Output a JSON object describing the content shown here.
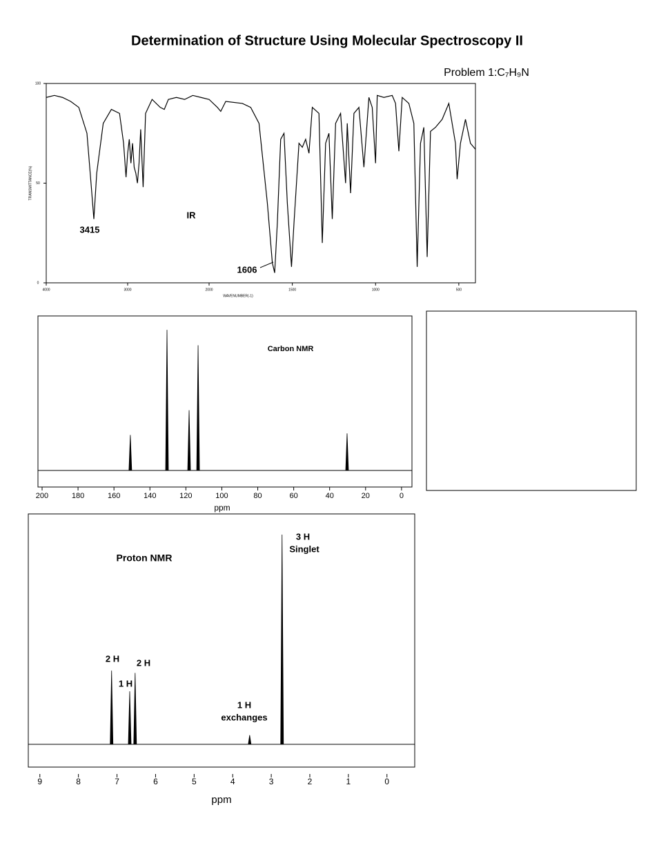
{
  "header": {
    "title": "Determination of Structure Using Molecular Spectroscopy II",
    "problem": "Problem 1:C₇H₉N"
  },
  "chart_data": [
    {
      "type": "line",
      "title": "IR",
      "xlabel": "WAVENUMBER(-1)",
      "ylabel": "TRANSMITTANCE(%)",
      "annotations": [
        "3415",
        "1606"
      ],
      "x": [
        4000,
        3900,
        3800,
        3700,
        3600,
        3500,
        3450,
        3415,
        3380,
        3300,
        3200,
        3100,
        3050,
        3020,
        3000,
        2980,
        2960,
        2940,
        2920,
        2900,
        2880,
        2860,
        2840,
        2810,
        2780,
        2700,
        2600,
        2550,
        2500,
        2400,
        2300,
        2200,
        2100,
        2000,
        1950,
        1930,
        1900,
        1800,
        1750,
        1700,
        1650,
        1620,
        1606,
        1590,
        1570,
        1550,
        1530,
        1505,
        1490,
        1475,
        1460,
        1440,
        1420,
        1400,
        1380,
        1340,
        1320,
        1300,
        1280,
        1260,
        1240,
        1210,
        1180,
        1170,
        1150,
        1130,
        1100,
        1070,
        1040,
        1020,
        1000,
        990,
        950,
        900,
        880,
        860,
        840,
        800,
        770,
        750,
        730,
        710,
        690,
        670,
        640,
        600,
        560,
        520,
        510,
        490,
        460,
        430,
        400
      ],
      "series": [
        {
          "name": "IR",
          "color": "#000000",
          "values": [
            93,
            94,
            93,
            91,
            88,
            75,
            50,
            32,
            55,
            80,
            87,
            85,
            70,
            53,
            65,
            72,
            60,
            70,
            58,
            55,
            50,
            60,
            77,
            48,
            85,
            92,
            88,
            87,
            92,
            93,
            92,
            94,
            93,
            92,
            88,
            86,
            91,
            90,
            88,
            80,
            40,
            10,
            5,
            30,
            72,
            75,
            40,
            8,
            30,
            50,
            70,
            68,
            72,
            65,
            88,
            85,
            20,
            70,
            75,
            32,
            80,
            85,
            50,
            80,
            45,
            85,
            88,
            58,
            93,
            88,
            60,
            94,
            93,
            94,
            90,
            66,
            93,
            90,
            80,
            8,
            70,
            78,
            13,
            76,
            78,
            82,
            90,
            70,
            52,
            70,
            82,
            70,
            67
          ]
        }
      ],
      "xlim": [
        4000,
        400
      ],
      "xticks": [
        4000,
        3000,
        2000,
        1500,
        1000,
        500
      ],
      "ylim": [
        0,
        100
      ],
      "yticks": [
        0,
        50,
        100
      ]
    },
    {
      "type": "spectrum",
      "title": "Carbon NMR",
      "xlabel": "ppm",
      "x": [
        150.9,
        130.5,
        118.2,
        113.2,
        30.3
      ],
      "values": [
        23,
        91,
        39,
        81,
        24
      ],
      "color": "#000000",
      "xlim": [
        202.3,
        -5.8
      ],
      "xticks": [
        200,
        180,
        160,
        140,
        120,
        100,
        80,
        60,
        40,
        20,
        0
      ],
      "ylim": [
        0,
        100
      ]
    },
    {
      "type": "spectrum",
      "title": "Proton NMR",
      "xlabel": "ppm",
      "peak_labels": [
        "2 H",
        "1 H",
        "2 H",
        "1 H",
        "exchanges",
        "3 H",
        "Singlet"
      ],
      "x": [
        7.14,
        6.67,
        6.53,
        3.56,
        2.72
      ],
      "values": [
        32,
        23,
        31,
        4,
        91
      ],
      "color": "#000000",
      "xlim": [
        9.3,
        -0.72
      ],
      "xticks": [
        9,
        8,
        7,
        6,
        5,
        4,
        3,
        2,
        1,
        0
      ],
      "ylim": [
        0,
        100
      ]
    }
  ]
}
